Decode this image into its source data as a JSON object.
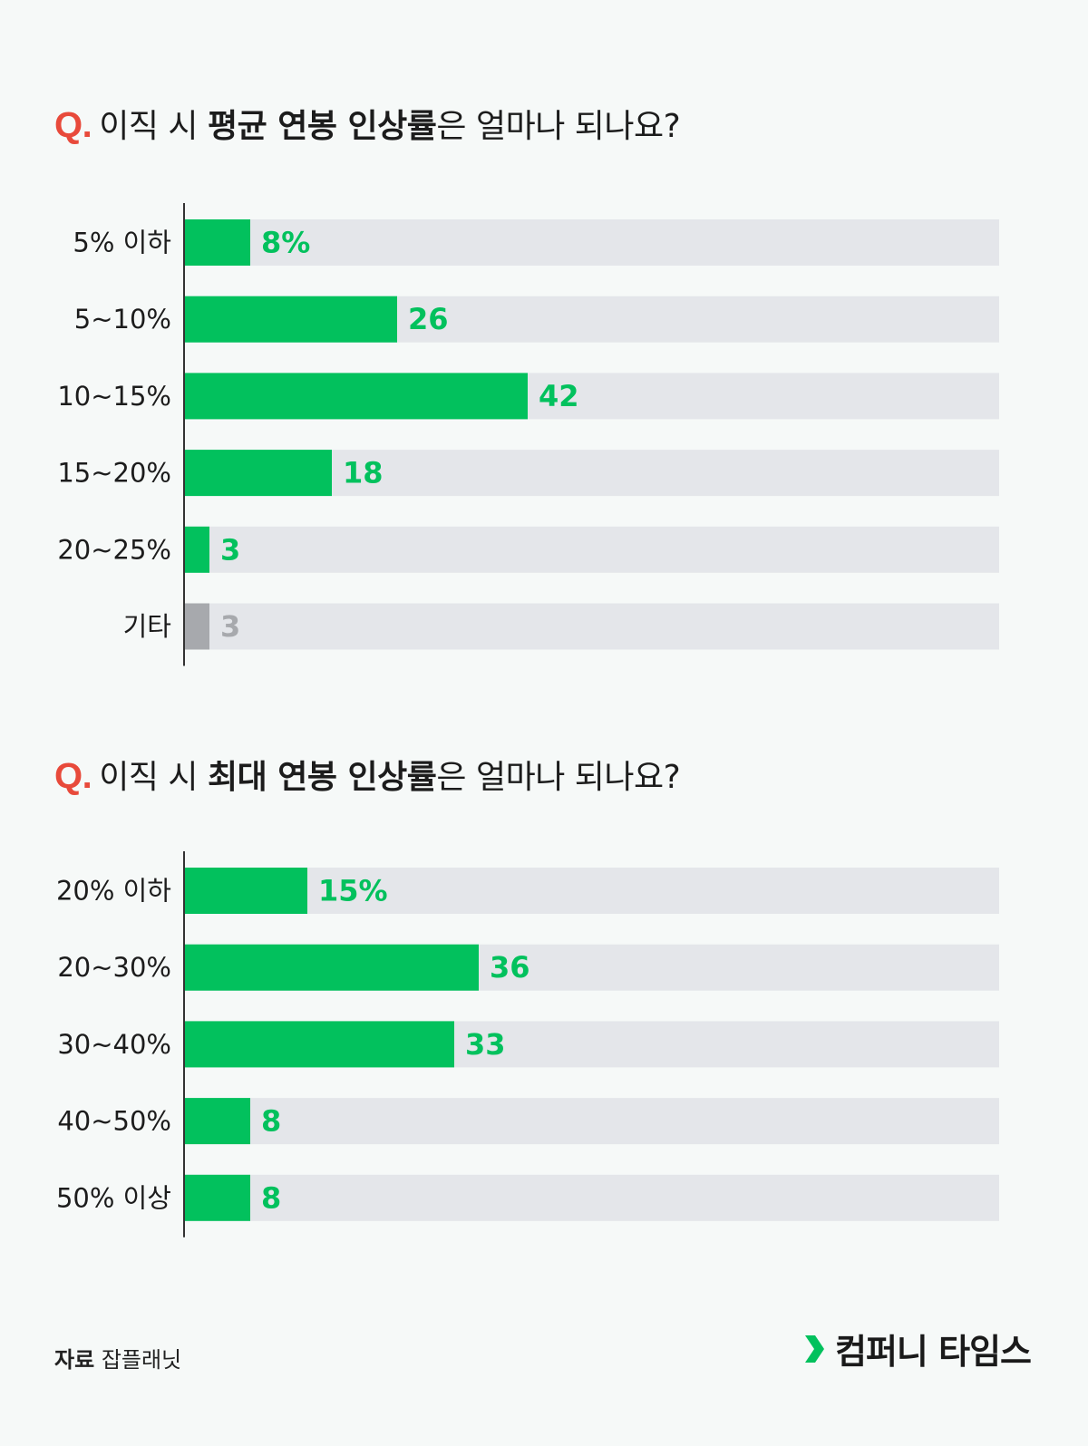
{
  "colors": {
    "accent": "#02c15d",
    "other": "#a7a9ad",
    "track": "#e4e6ea",
    "q": "#e84a3b"
  },
  "chart_data": [
    {
      "type": "bar",
      "orientation": "horizontal",
      "title": {
        "prefix": "Q.",
        "pre": "이직 시 ",
        "bold": "평균 연봉 인상률",
        "post": "은 얼마나 되나요?"
      },
      "xlim": [
        0,
        100
      ],
      "categories": [
        "5% 이하",
        "5~10%",
        "10~15%",
        "15~20%",
        "20~25%",
        "기타"
      ],
      "values": [
        8,
        26,
        42,
        18,
        3,
        3
      ],
      "value_labels": [
        "8%",
        "26",
        "42",
        "18",
        "3",
        "3"
      ],
      "highlight": [
        "accent",
        "accent",
        "accent",
        "accent",
        "accent",
        "other"
      ]
    },
    {
      "type": "bar",
      "orientation": "horizontal",
      "title": {
        "prefix": "Q.",
        "pre": "이직 시 ",
        "bold": "최대 연봉 인상률",
        "post": "은 얼마나 되나요?"
      },
      "xlim": [
        0,
        100
      ],
      "categories": [
        "20% 이하",
        "20~30%",
        "30~40%",
        "40~50%",
        "50% 이상"
      ],
      "values": [
        15,
        36,
        33,
        8,
        8
      ],
      "value_labels": [
        "15%",
        "36",
        "33",
        "8",
        "8"
      ],
      "highlight": [
        "accent",
        "accent",
        "accent",
        "accent",
        "accent"
      ]
    }
  ],
  "footer": {
    "source_label": "자료",
    "source": "잡플래닛",
    "logo_text": "컴퍼니 타임스",
    "logo_icon": "chevron-right-icon"
  }
}
